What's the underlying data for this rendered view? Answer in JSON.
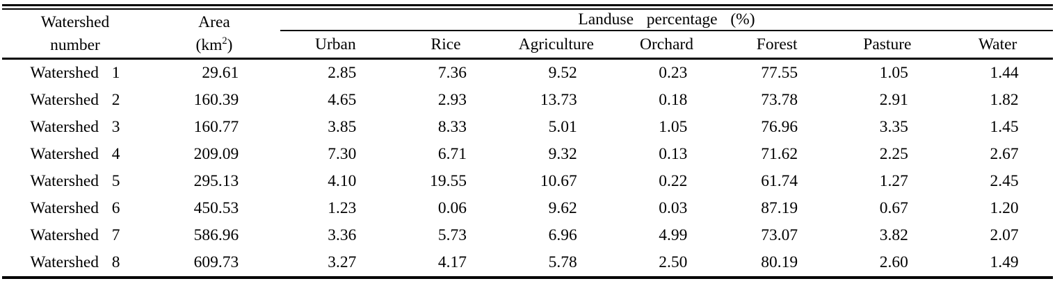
{
  "table": {
    "header": {
      "col1": [
        "Watershed",
        "number"
      ],
      "col2_title": "Area",
      "col2_unit": {
        "prefix": "(km",
        "sup": "2",
        "suffix": ")"
      },
      "group_title": "Landuse percentage (%)",
      "subcols": [
        "Urban",
        "Rice",
        "Agriculture",
        "Orchard",
        "Forest",
        "Pasture",
        "Water"
      ]
    },
    "rows": [
      {
        "label": "Watershed 1",
        "area": "29.61",
        "values": [
          "2.85",
          "7.36",
          "9.52",
          "0.23",
          "77.55",
          "1.05",
          "1.44"
        ]
      },
      {
        "label": "Watershed 2",
        "area": "160.39",
        "values": [
          "4.65",
          "2.93",
          "13.73",
          "0.18",
          "73.78",
          "2.91",
          "1.82"
        ]
      },
      {
        "label": "Watershed 3",
        "area": "160.77",
        "values": [
          "3.85",
          "8.33",
          "5.01",
          "1.05",
          "76.96",
          "3.35",
          "1.45"
        ]
      },
      {
        "label": "Watershed 4",
        "area": "209.09",
        "values": [
          "7.30",
          "6.71",
          "9.32",
          "0.13",
          "71.62",
          "2.25",
          "2.67"
        ]
      },
      {
        "label": "Watershed 5",
        "area": "295.13",
        "values": [
          "4.10",
          "19.55",
          "10.67",
          "0.22",
          "61.74",
          "1.27",
          "2.45"
        ]
      },
      {
        "label": "Watershed 6",
        "area": "450.53",
        "values": [
          "1.23",
          "0.06",
          "9.62",
          "0.03",
          "87.19",
          "0.67",
          "1.20"
        ]
      },
      {
        "label": "Watershed 7",
        "area": "586.96",
        "values": [
          "3.36",
          "5.73",
          "6.96",
          "4.99",
          "73.07",
          "3.82",
          "2.07"
        ]
      },
      {
        "label": "Watershed 8",
        "area": "609.73",
        "values": [
          "3.27",
          "4.17",
          "5.78",
          "2.50",
          "80.19",
          "2.60",
          "1.49"
        ]
      }
    ],
    "colors": {
      "text": "#000000",
      "rule": "#000000",
      "background": "#ffffff"
    }
  }
}
